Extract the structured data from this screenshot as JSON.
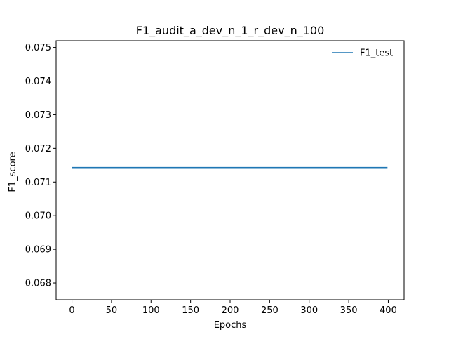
{
  "chart_data": {
    "type": "line",
    "title": "F1_audit_a_dev_n_1_r_dev_n_100",
    "xlabel": "Epochs",
    "ylabel": "F1_score",
    "xlim": [
      -20,
      420
    ],
    "ylim": [
      0.0675,
      0.0752
    ],
    "xticks": [
      0,
      50,
      100,
      150,
      200,
      250,
      300,
      350,
      400
    ],
    "xtick_labels": [
      "0",
      "50",
      "100",
      "150",
      "200",
      "250",
      "300",
      "350",
      "400"
    ],
    "yticks": [
      0.068,
      0.069,
      0.07,
      0.071,
      0.072,
      0.073,
      0.074,
      0.075
    ],
    "ytick_labels": [
      "0.068",
      "0.069",
      "0.070",
      "0.071",
      "0.072",
      "0.073",
      "0.074",
      "0.075"
    ],
    "grid": false,
    "legend_position": "top-right",
    "series": [
      {
        "name": "F1_test",
        "color": "#1f77b4",
        "x": [
          0,
          399
        ],
        "y": [
          0.07143,
          0.07143
        ]
      }
    ]
  }
}
